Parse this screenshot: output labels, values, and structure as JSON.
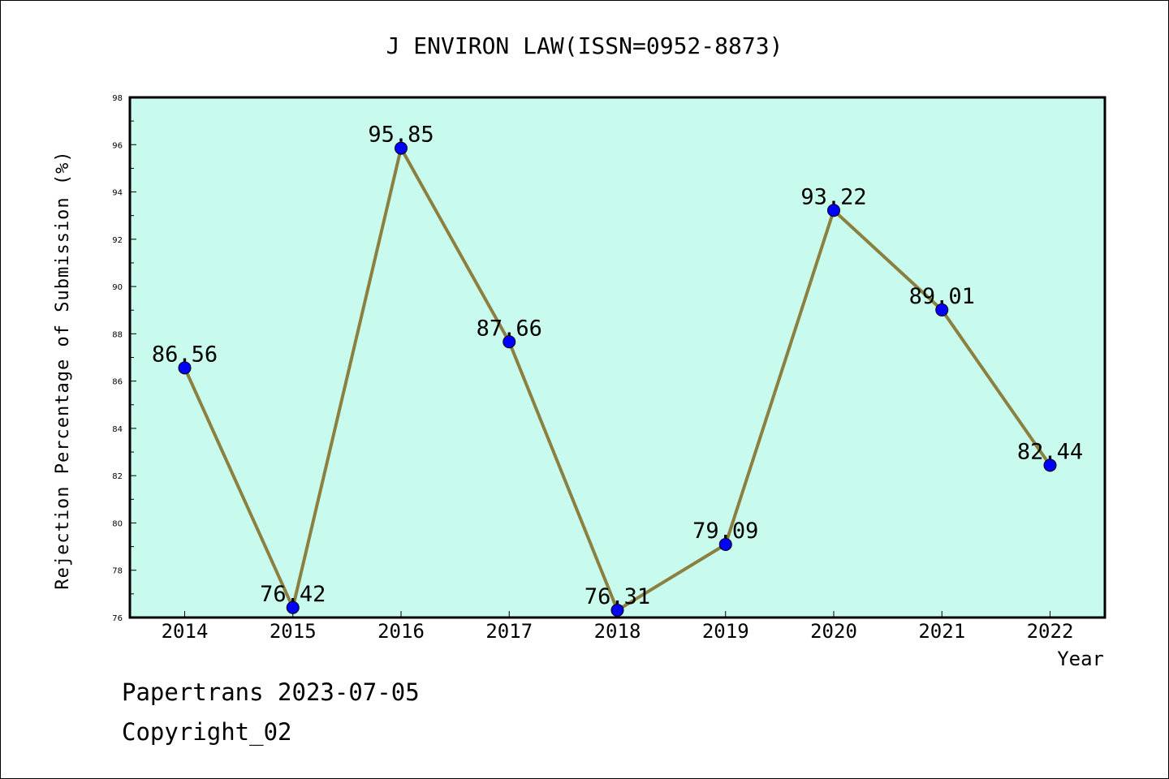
{
  "chart_data": {
    "type": "line",
    "title": "J ENVIRON LAW(ISSN=0952-8873)",
    "xlabel": "Year",
    "ylabel": "Rejection Percentage of Submission (%)",
    "categories": [
      "2014",
      "2015",
      "2016",
      "2017",
      "2018",
      "2019",
      "2020",
      "2021",
      "2022"
    ],
    "values": [
      86.56,
      76.42,
      95.85,
      87.66,
      76.31,
      79.09,
      93.22,
      89.01,
      82.44
    ],
    "value_labels": [
      "86.56",
      "76.42",
      "95.85",
      "87.66",
      "76.31",
      "79.09",
      "93.22",
      "89.01",
      "82.44"
    ],
    "ylim": [
      76,
      98
    ],
    "yticks": [
      "76",
      "78",
      "80",
      "82",
      "84",
      "86",
      "88",
      "90",
      "92",
      "94",
      "96",
      "98"
    ],
    "grid": false,
    "colors": {
      "plot_background": "#c8fbee",
      "line": "#8b8040",
      "marker": "#0000ff"
    }
  },
  "footer": {
    "date_line": "Papertrans 2023-07-05",
    "copyright_line": "Copyright_02"
  }
}
